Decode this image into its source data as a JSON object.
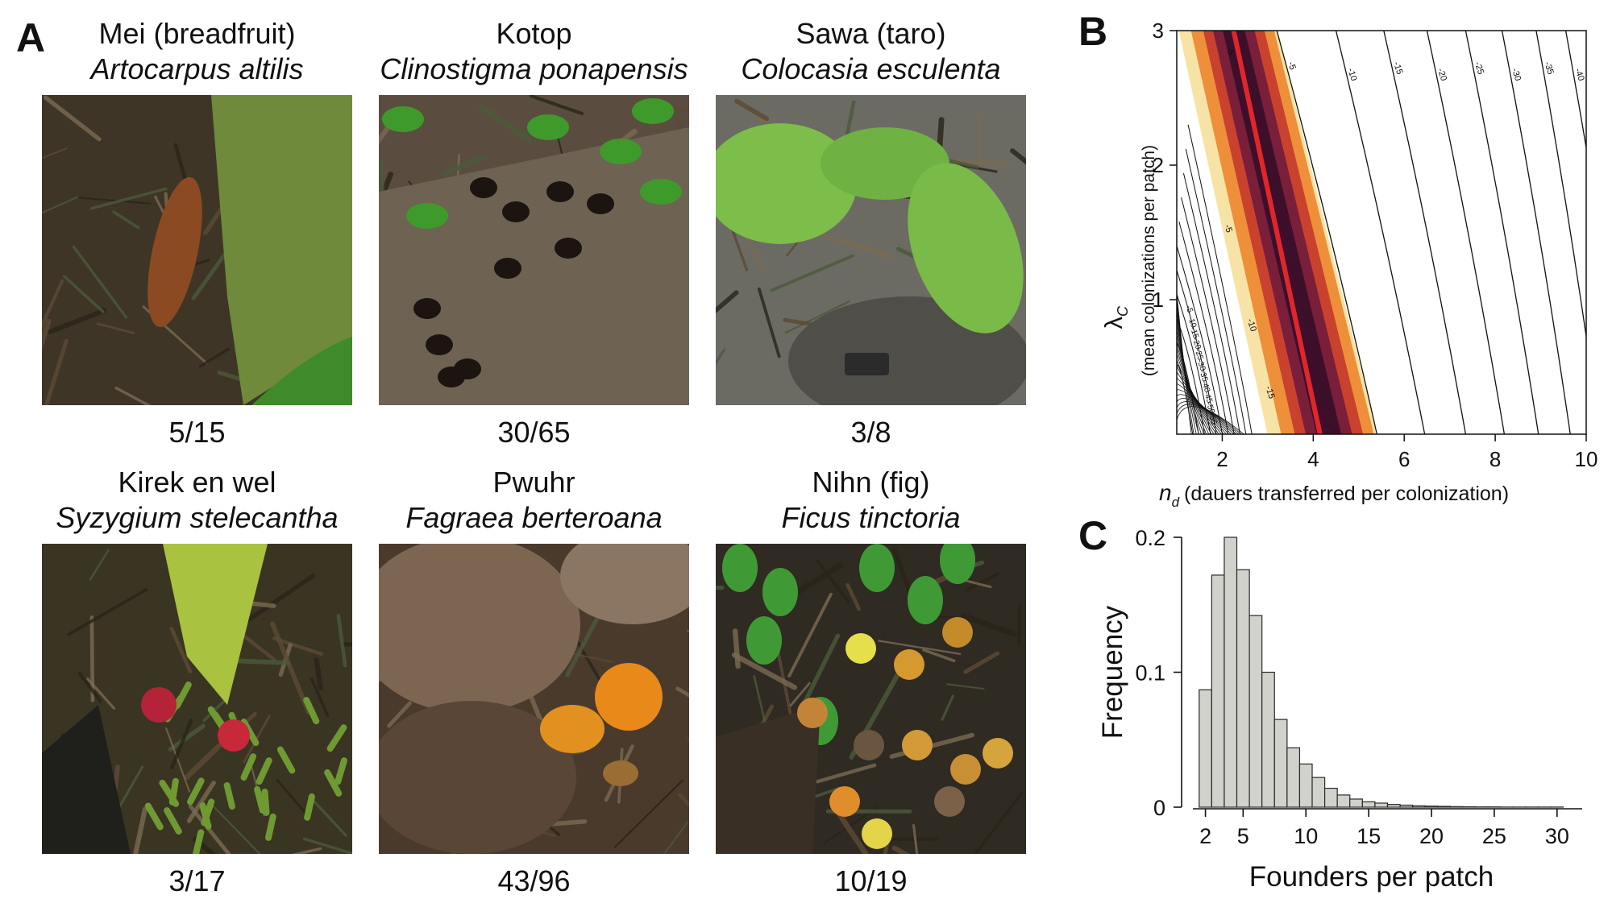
{
  "panels": {
    "A": "A",
    "B": "B",
    "C": "C"
  },
  "photos": [
    {
      "common": "Mei (breadfruit)",
      "latin": "Artocarpus altilis",
      "count": "5/15",
      "scene": "breadfruit-on-moss"
    },
    {
      "common": "Kotop",
      "latin": "Clinostigma ponapensis",
      "count": "30/65",
      "scene": "palm-seeds-on-frond"
    },
    {
      "common": "Sawa (taro)",
      "latin": "Colocasia esculenta",
      "count": "3/8",
      "scene": "taro-plant-on-rock"
    },
    {
      "common": "Kirek en wel",
      "latin": "Syzygium stelecantha",
      "count": "3/17",
      "scene": "red-fruit-in-moss"
    },
    {
      "common": "Pwuhr",
      "latin": "Fagraea berteroana",
      "count": "43/96",
      "scene": "orange-fruit-on-leaves"
    },
    {
      "common": "Nihn (fig)",
      "latin": "Ficus tinctoria",
      "count": "10/19",
      "scene": "figs-on-litter"
    }
  ],
  "chart_data": [
    {
      "type": "contour",
      "panel": "B",
      "xlabel_symbol": "n",
      "xlabel_subscript": "d",
      "xlabel": "(dauers transferred per colonization)",
      "ylabel_symbol": "λ",
      "ylabel_subscript": "C",
      "ylabel": "(mean colonizations per patch)",
      "xlim": [
        1,
        10
      ],
      "ylim": [
        0,
        3
      ],
      "xticks": [
        2,
        4,
        6,
        8,
        10
      ],
      "yticks": [
        1,
        2,
        3
      ],
      "optimum_ridge": {
        "color": "#e0262b",
        "points": [
          [
            2.25,
            3.0
          ],
          [
            4.15,
            0.0
          ]
        ]
      },
      "heat_band": {
        "x_at_top": [
          1.05,
          3.2
        ],
        "x_at_bottom": [
          3.0,
          5.4
        ],
        "colors": [
          "#3d0f2a",
          "#7a1f3a",
          "#c9422e",
          "#ee8f3a",
          "#f8e3a6"
        ]
      },
      "contours": [
        {
          "label": "-5",
          "x_at_top": 3.2,
          "x_at_bottom": 5.4
        },
        {
          "label": "-10",
          "x_at_top": 4.5,
          "x_at_bottom": 6.45
        },
        {
          "label": "-15",
          "x_at_top": 5.55,
          "x_at_bottom": 7.35
        },
        {
          "label": "-20",
          "x_at_top": 6.5,
          "x_at_bottom": 8.2
        },
        {
          "label": "-25",
          "x_at_top": 7.35,
          "x_at_bottom": 8.95
        },
        {
          "label": "-30",
          "x_at_top": 8.15,
          "x_at_bottom": 9.65
        },
        {
          "label": "-35",
          "x_at_top": 8.9,
          "x_at_bottom": 10.3
        },
        {
          "label": "-40",
          "x_at_top": 9.55,
          "x_at_bottom": 10.95
        }
      ],
      "left_contour_labels": [
        "-5",
        "-10",
        "-15",
        "-20",
        "-25",
        "-30",
        "-35",
        "-40",
        "-45",
        "-50",
        "-55"
      ]
    },
    {
      "type": "bar",
      "panel": "C",
      "xlabel": "Founders per patch",
      "ylabel": "Frequency",
      "bar_color": "#d2d2cc",
      "xlim": [
        1,
        32
      ],
      "ylim": [
        0,
        0.2
      ],
      "xticks": [
        2,
        5,
        10,
        15,
        20,
        25,
        30
      ],
      "yticks": [
        0,
        0.1,
        0.2
      ],
      "categories": [
        2,
        3,
        4,
        5,
        6,
        7,
        8,
        9,
        10,
        11,
        12,
        13,
        14,
        15,
        16,
        17,
        18,
        19,
        20,
        21,
        22,
        23,
        24,
        25,
        26,
        27,
        28,
        29,
        30
      ],
      "values": [
        0.087,
        0.172,
        0.2,
        0.176,
        0.142,
        0.1,
        0.065,
        0.044,
        0.032,
        0.022,
        0.014,
        0.009,
        0.006,
        0.004,
        0.003,
        0.002,
        0.0015,
        0.001,
        0.0008,
        0.0006,
        0.0004,
        0.0003,
        0.0002,
        0.0002,
        0.0001,
        0.0001,
        0.0001,
        0.0001,
        0.0001
      ]
    }
  ]
}
